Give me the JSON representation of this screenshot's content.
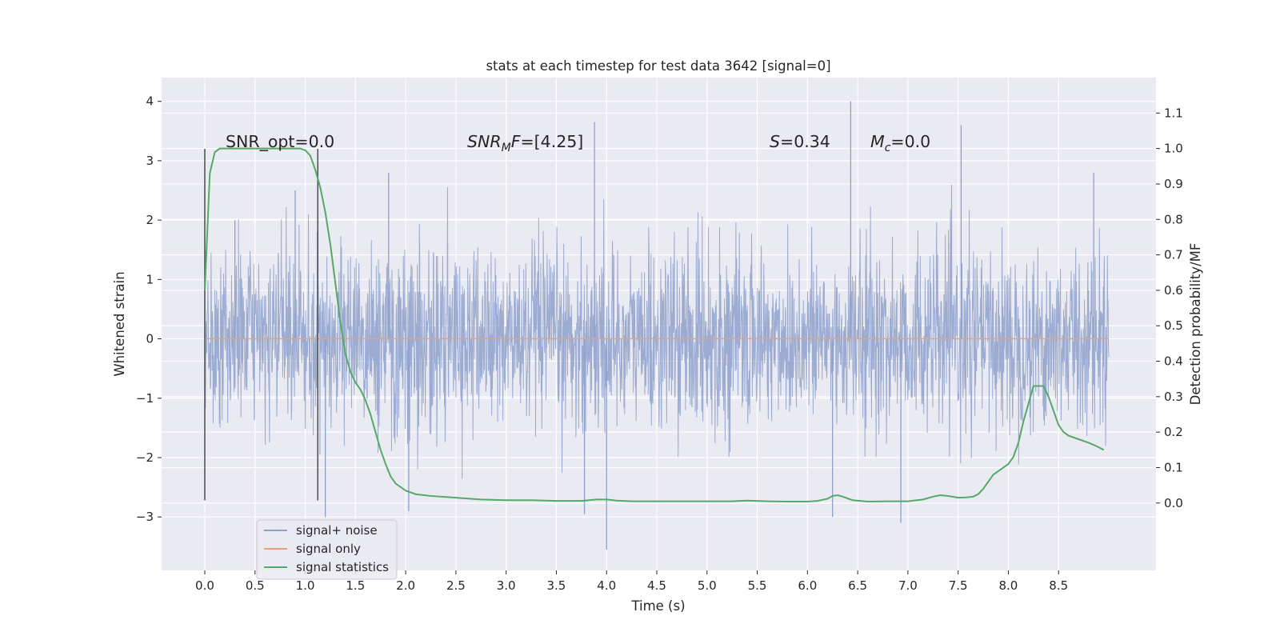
{
  "chart_data": {
    "type": "line",
    "title": "stats at each timestep for test data 3642 [signal=0]",
    "xlabel": "Time (s)",
    "ylabel": "Whitened strain",
    "y2label": "Detection probability/MF",
    "xlim": [
      -0.43,
      9.47
    ],
    "ylim": [
      -3.9,
      4.4
    ],
    "y2lim": [
      -0.19,
      1.2
    ],
    "x_ticks": [
      "0.0",
      "0.5",
      "1.0",
      "1.5",
      "2.0",
      "2.5",
      "3.0",
      "3.5",
      "4.0",
      "4.5",
      "5.0",
      "5.5",
      "6.0",
      "6.5",
      "7.0",
      "7.5",
      "8.0",
      "8.5"
    ],
    "y_ticks": [
      "4",
      "3",
      "2",
      "1",
      "0",
      "−1",
      "−2",
      "−3"
    ],
    "y2_ticks": [
      "1.1",
      "1.0",
      "0.9",
      "0.8",
      "0.7",
      "0.6",
      "0.5",
      "0.4",
      "0.3",
      "0.2",
      "0.1",
      "0.0"
    ],
    "vertical_markers": [
      0.0,
      1.125
    ],
    "annotations": {
      "snr_opt": "SNR_opt=0.0",
      "snr_mf_prefix": "SNR",
      "snr_mf_sub": "M",
      "snr_mf_mid": "F",
      "snr_mf_value": "=[4.25]",
      "s_symbol": "S",
      "s_value": "=0.34",
      "mc_symbol": "M",
      "mc_sub": "c",
      "mc_value": "=0.0"
    },
    "legend": {
      "location": "lower-left",
      "entries": [
        "signal+ noise",
        "signal only",
        "signal statistics"
      ]
    },
    "series": [
      {
        "name": "signal+ noise",
        "axis": "left",
        "kind": "noise",
        "x_range": [
          0.0,
          9.0
        ],
        "std": 0.75,
        "peaks": [
          [
            0.0,
            1.5
          ],
          [
            0.3,
            2.0
          ],
          [
            0.9,
            2.5
          ],
          [
            1.12,
            1.8
          ],
          [
            1.2,
            -3.0
          ],
          [
            1.83,
            2.8
          ],
          [
            2.03,
            -2.9
          ],
          [
            3.78,
            -2.95
          ],
          [
            3.88,
            3.65
          ],
          [
            4.0,
            -3.55
          ],
          [
            6.25,
            -3.0
          ],
          [
            6.43,
            4.0
          ],
          [
            6.93,
            -3.1
          ],
          [
            7.53,
            3.6
          ],
          [
            8.85,
            2.8
          ]
        ]
      },
      {
        "name": "signal only",
        "axis": "left",
        "kind": "flat",
        "x": [
          0.0,
          9.0
        ],
        "y": [
          0.0,
          0.0
        ]
      },
      {
        "name": "signal statistics",
        "axis": "right",
        "kind": "line",
        "x": [
          0.0,
          0.05,
          0.1,
          0.15,
          0.2,
          0.25,
          0.3,
          0.4,
          0.5,
          0.6,
          0.7,
          0.8,
          0.9,
          0.95,
          1.0,
          1.05,
          1.1,
          1.15,
          1.2,
          1.25,
          1.3,
          1.35,
          1.4,
          1.45,
          1.5,
          1.55,
          1.6,
          1.65,
          1.7,
          1.75,
          1.8,
          1.85,
          1.9,
          2.0,
          2.1,
          2.25,
          2.5,
          2.75,
          3.0,
          3.25,
          3.5,
          3.75,
          3.9,
          4.0,
          4.1,
          4.25,
          4.5,
          4.75,
          5.0,
          5.25,
          5.4,
          5.6,
          5.8,
          6.0,
          6.1,
          6.2,
          6.25,
          6.3,
          6.35,
          6.45,
          6.6,
          6.8,
          7.0,
          7.15,
          7.25,
          7.32,
          7.4,
          7.5,
          7.58,
          7.65,
          7.7,
          7.75,
          7.8,
          7.85,
          7.9,
          7.95,
          8.0,
          8.05,
          8.1,
          8.15,
          8.2,
          8.25,
          8.3,
          8.35,
          8.4,
          8.45,
          8.5,
          8.55,
          8.6,
          8.7,
          8.8,
          8.88,
          8.95
        ],
        "y": [
          0.6,
          0.93,
          0.99,
          1.0,
          1.0,
          1.0,
          1.0,
          1.0,
          1.0,
          1.0,
          1.0,
          1.0,
          1.0,
          1.0,
          0.995,
          0.98,
          0.94,
          0.89,
          0.82,
          0.73,
          0.62,
          0.51,
          0.42,
          0.37,
          0.34,
          0.32,
          0.29,
          0.25,
          0.2,
          0.15,
          0.11,
          0.075,
          0.055,
          0.035,
          0.025,
          0.02,
          0.015,
          0.01,
          0.008,
          0.008,
          0.006,
          0.006,
          0.01,
          0.01,
          0.007,
          0.005,
          0.005,
          0.005,
          0.005,
          0.005,
          0.007,
          0.005,
          0.004,
          0.004,
          0.006,
          0.012,
          0.02,
          0.022,
          0.018,
          0.008,
          0.004,
          0.005,
          0.005,
          0.01,
          0.018,
          0.022,
          0.02,
          0.015,
          0.016,
          0.018,
          0.025,
          0.04,
          0.06,
          0.08,
          0.09,
          0.1,
          0.11,
          0.13,
          0.17,
          0.23,
          0.28,
          0.33,
          0.33,
          0.33,
          0.3,
          0.26,
          0.22,
          0.2,
          0.19,
          0.18,
          0.17,
          0.16,
          0.15
        ]
      }
    ]
  }
}
